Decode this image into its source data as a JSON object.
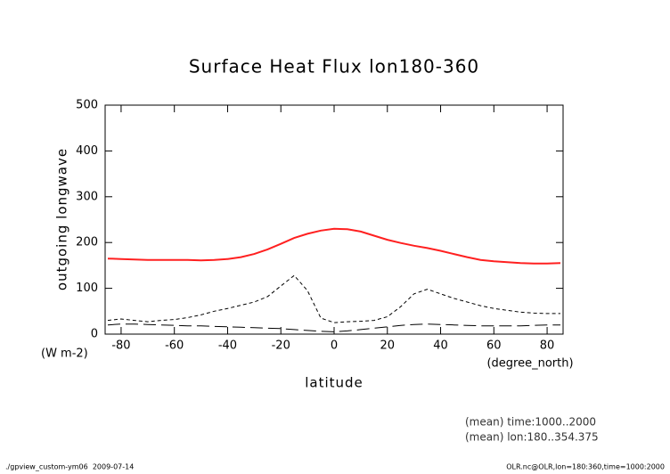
{
  "chart_data": {
    "type": "line",
    "title": "Surface Heat Flux lon180-360",
    "y_label": "outgoing longwave",
    "y_units": "(W m-2)",
    "x_label": "latitude",
    "x_units": "(degree_north)",
    "notes": [
      "(mean) time:1000..2000",
      "(mean) lon:180..354.375"
    ],
    "footer_left": "./gpview_custom-ym06  2009-07-14",
    "footer_right": "OLR.nc@OLR,lon=180:360,time=1000:2000",
    "x": [
      -85,
      -80,
      -75,
      -70,
      -65,
      -60,
      -55,
      -50,
      -45,
      -40,
      -35,
      -30,
      -25,
      -20,
      -15,
      -10,
      -5,
      0,
      5,
      10,
      15,
      20,
      25,
      30,
      35,
      40,
      45,
      50,
      55,
      60,
      65,
      70,
      75,
      80,
      85
    ],
    "series": [
      {
        "color": "#ff2020",
        "style": "solid",
        "values": [
          165,
          164,
          163,
          162,
          162,
          162,
          162,
          161,
          162,
          164,
          168,
          175,
          185,
          197,
          210,
          219,
          226,
          230,
          229,
          224,
          215,
          206,
          199,
          193,
          188,
          182,
          175,
          168,
          162,
          159,
          157,
          155,
          154,
          154,
          155
        ]
      },
      {
        "color": "#000000",
        "style": "dashed",
        "values": [
          30,
          33,
          30,
          27,
          30,
          32,
          36,
          42,
          50,
          56,
          63,
          70,
          82,
          105,
          128,
          95,
          35,
          25,
          27,
          28,
          30,
          38,
          60,
          88,
          98,
          88,
          78,
          70,
          62,
          56,
          52,
          48,
          46,
          45,
          45
        ]
      },
      {
        "color": "#000000",
        "style": "long-dashed",
        "values": [
          20,
          22,
          22,
          21,
          20,
          19,
          18,
          18,
          17,
          16,
          15,
          14,
          13,
          12,
          10,
          8,
          6,
          5,
          7,
          10,
          13,
          16,
          19,
          21,
          22,
          21,
          20,
          19,
          18,
          18,
          18,
          18,
          19,
          20,
          20
        ]
      }
    ],
    "xlim": [
      -86,
      86
    ],
    "xticks": [
      -80,
      -60,
      -40,
      -20,
      0,
      20,
      40,
      60,
      80
    ],
    "ylim": [
      0,
      500
    ],
    "yticks": [
      0,
      100,
      200,
      300,
      400,
      500
    ]
  }
}
